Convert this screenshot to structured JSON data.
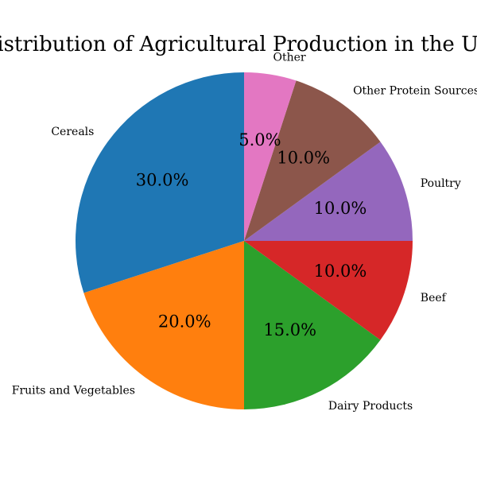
{
  "chart_data": {
    "type": "pie",
    "title": "Distribution of Agricultural Production in the USA",
    "categories": [
      "Cereals",
      "Fruits and Vegetables",
      "Dairy Products",
      "Beef",
      "Poultry",
      "Other Protein Sources",
      "Other"
    ],
    "values": [
      30.0,
      20.0,
      15.0,
      10.0,
      10.0,
      10.0,
      5.0
    ],
    "value_labels": [
      "30.0%",
      "20.0%",
      "15.0%",
      "10.0%",
      "10.0%",
      "10.0%",
      "5.0%"
    ],
    "colors": [
      "#1f77b4",
      "#ff7f0e",
      "#2ca02c",
      "#d62728",
      "#9467bd",
      "#8c564b",
      "#e377c2"
    ],
    "start_angle_deg": 90,
    "direction": "counterclockwise"
  }
}
